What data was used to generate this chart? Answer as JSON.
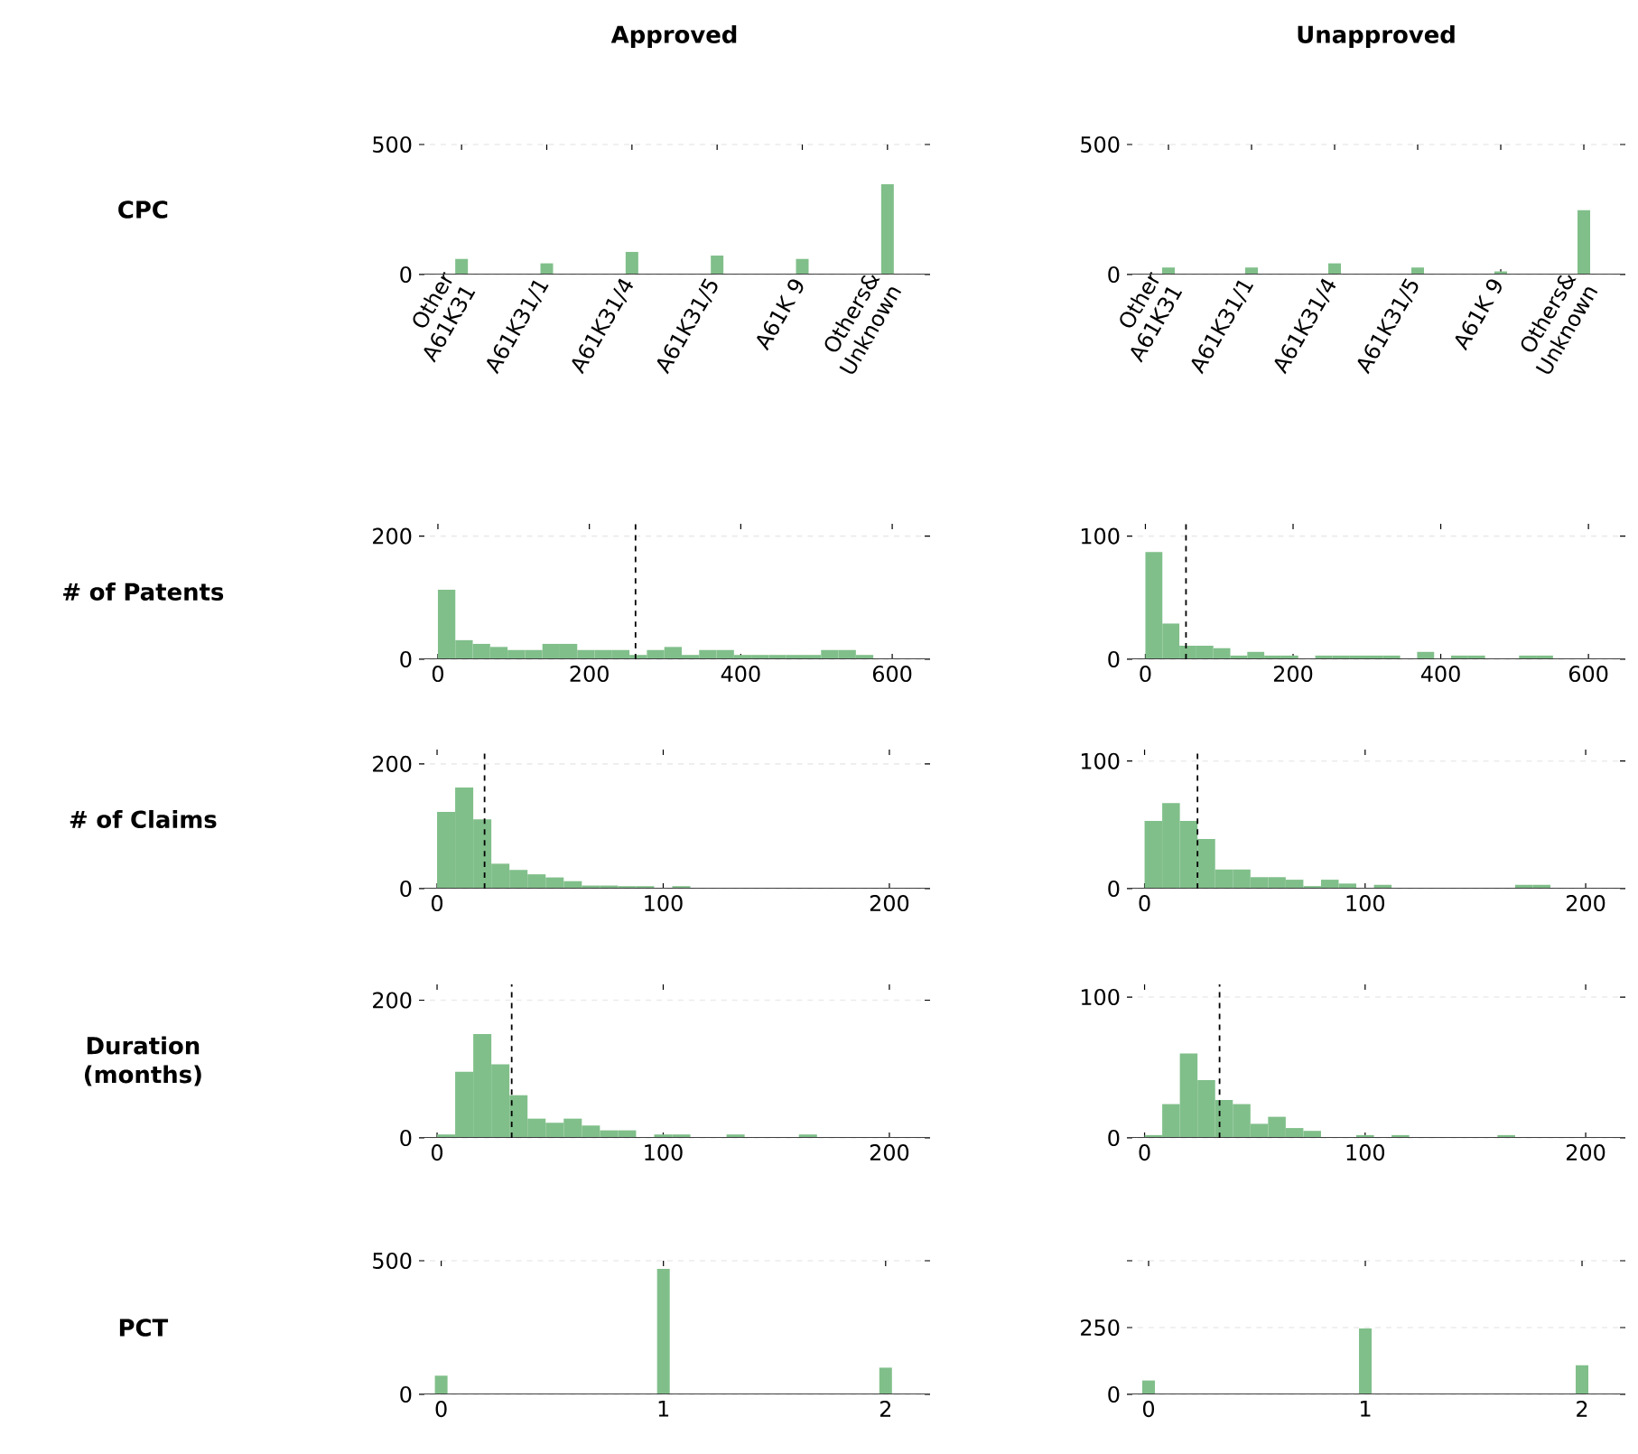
{
  "chart_data": [
    {
      "type": "bar",
      "title": "Approved",
      "ylabel": "CPC",
      "categories": [
        "Other A61K31",
        "A61K31/1",
        "A61K31/4",
        "A61K31/5",
        "A61K 9",
        "Others& Unknown"
      ],
      "values": [
        60,
        43,
        87,
        73,
        60,
        347
      ],
      "color": "#80bf8a",
      "ylim": [
        0,
        500
      ],
      "yticks": [
        0,
        500
      ],
      "grid": "y"
    },
    {
      "type": "bar",
      "title": "Unapproved",
      "categories": [
        "Other A61K31",
        "A61K31/1",
        "A61K31/4",
        "A61K31/5",
        "A61K 9",
        "Others& Unknown"
      ],
      "values": [
        27,
        27,
        43,
        27,
        12,
        247
      ],
      "color": "#80bf8a",
      "ylim": [
        0,
        500
      ],
      "yticks": [
        0,
        500
      ],
      "grid": "y"
    },
    {
      "type": "histogram",
      "ylabel": "# of Patents",
      "bins": [
        0,
        23,
        46,
        69,
        92,
        115,
        138,
        161,
        184,
        207,
        230,
        253,
        276,
        299,
        322,
        345,
        368,
        391,
        414,
        437,
        460,
        483,
        506,
        529,
        552,
        575,
        598
      ],
      "values": [
        113,
        31,
        25,
        20,
        15,
        15,
        25,
        25,
        15,
        15,
        15,
        7,
        15,
        20,
        7,
        15,
        15,
        7,
        7,
        7,
        7,
        7,
        15,
        15,
        7,
        0
      ],
      "color": "#80bf8a",
      "xlim": [
        -25,
        650
      ],
      "xticks": [
        0,
        200,
        400,
        600
      ],
      "ylim": [
        0,
        220
      ],
      "yticks": [
        0,
        200
      ],
      "grid": "y",
      "ref_lines": [
        {
          "axis": "x",
          "value": 261,
          "color": "#000000",
          "line_style": "dashed"
        }
      ]
    },
    {
      "type": "histogram",
      "bins": [
        0,
        23,
        46,
        69,
        92,
        115,
        138,
        161,
        184,
        207,
        230,
        253,
        276,
        299,
        322,
        345,
        368,
        391,
        414,
        437,
        460,
        483,
        506,
        529,
        552,
        575,
        598
      ],
      "values": [
        87,
        29,
        11,
        11,
        9,
        3,
        6,
        3,
        3,
        0,
        3,
        3,
        3,
        3,
        3,
        0,
        6,
        0,
        3,
        3,
        0,
        0,
        3,
        3,
        0,
        0
      ],
      "color": "#80bf8a",
      "xlim": [
        -25,
        650
      ],
      "xticks": [
        0,
        200,
        400,
        600
      ],
      "ylim": [
        0,
        110
      ],
      "yticks": [
        0,
        100
      ],
      "grid": "y",
      "ref_lines": [
        {
          "axis": "x",
          "value": 55,
          "color": "#000000",
          "line_style": "dashed"
        }
      ]
    },
    {
      "type": "histogram",
      "ylabel": "# of Claims",
      "bins": [
        0,
        8,
        16,
        24,
        32,
        40,
        48,
        56,
        64,
        72,
        80,
        88,
        96,
        104,
        112,
        120,
        128,
        136,
        144,
        152,
        160,
        168,
        176,
        184,
        192,
        200
      ],
      "values": [
        123,
        162,
        111,
        40,
        30,
        23,
        18,
        12,
        5,
        5,
        4,
        4,
        0,
        4,
        0,
        0,
        0,
        0,
        0,
        0,
        0,
        0,
        0,
        0,
        0
      ],
      "color": "#80bf8a",
      "xlim": [
        -8,
        218
      ],
      "xticks": [
        0,
        100,
        200
      ],
      "ylim": [
        0,
        223
      ],
      "yticks": [
        0,
        200
      ],
      "grid": "y",
      "ref_lines": [
        {
          "axis": "x",
          "value": 21,
          "color": "#000000",
          "line_style": "dashed"
        }
      ]
    },
    {
      "type": "histogram",
      "bins": [
        0,
        8,
        16,
        24,
        32,
        40,
        48,
        56,
        64,
        72,
        80,
        88,
        96,
        104,
        112,
        120,
        128,
        136,
        144,
        152,
        160,
        168,
        176,
        184,
        192,
        200
      ],
      "values": [
        53,
        67,
        53,
        39,
        15,
        15,
        9,
        9,
        7,
        2,
        7,
        4,
        0,
        3,
        0,
        0,
        0,
        0,
        0,
        0,
        0,
        3,
        3,
        0,
        0
      ],
      "color": "#80bf8a",
      "xlim": [
        -8,
        218
      ],
      "xticks": [
        0,
        100,
        200
      ],
      "ylim": [
        0,
        109
      ],
      "yticks": [
        0,
        100
      ],
      "grid": "y",
      "ref_lines": [
        {
          "axis": "x",
          "value": 24,
          "color": "#000000",
          "line_style": "dashed"
        }
      ]
    },
    {
      "type": "histogram",
      "ylabel": "Duration (months)",
      "bins": [
        0,
        8,
        16,
        24,
        32,
        40,
        48,
        56,
        64,
        72,
        80,
        88,
        96,
        104,
        112,
        120,
        128,
        136,
        144,
        152,
        160,
        168,
        176,
        184,
        192,
        200
      ],
      "values": [
        5,
        96,
        151,
        107,
        62,
        28,
        22,
        28,
        18,
        11,
        11,
        0,
        5,
        5,
        0,
        0,
        5,
        0,
        0,
        0,
        5,
        0,
        0,
        0,
        0
      ],
      "color": "#80bf8a",
      "xlim": [
        -8,
        218
      ],
      "xticks": [
        0,
        100,
        200
      ],
      "ylim": [
        0,
        223
      ],
      "yticks": [
        0,
        200
      ],
      "grid": "y",
      "ref_lines": [
        {
          "axis": "x",
          "value": 33,
          "color": "#000000",
          "line_style": "dashed"
        }
      ]
    },
    {
      "type": "histogram",
      "bins": [
        0,
        8,
        16,
        24,
        32,
        40,
        48,
        56,
        64,
        72,
        80,
        88,
        96,
        104,
        112,
        120,
        128,
        136,
        144,
        152,
        160,
        168,
        176,
        184,
        192,
        200
      ],
      "values": [
        2,
        24,
        60,
        41,
        27,
        24,
        10,
        15,
        7,
        5,
        0,
        0,
        2,
        0,
        2,
        0,
        0,
        0,
        0,
        0,
        2,
        0,
        0,
        0,
        0
      ],
      "color": "#80bf8a",
      "xlim": [
        -8,
        218
      ],
      "xticks": [
        0,
        100,
        200
      ],
      "ylim": [
        0,
        109
      ],
      "yticks": [
        0,
        100
      ],
      "grid": "y",
      "ref_lines": [
        {
          "axis": "x",
          "value": 34,
          "color": "#000000",
          "line_style": "dashed"
        }
      ]
    },
    {
      "type": "bar",
      "ylabel": "PCT",
      "x": [
        0,
        1,
        2
      ],
      "values": [
        70,
        470,
        100
      ],
      "color": "#80bf8a",
      "xlim": [
        -0.1,
        2.2
      ],
      "xticks": [
        0,
        1,
        2
      ],
      "ylim": [
        0,
        500
      ],
      "yticks": [
        0,
        500
      ],
      "grid": "y"
    },
    {
      "type": "bar",
      "x": [
        0,
        1,
        2
      ],
      "values": [
        52,
        247,
        109
      ],
      "color": "#80bf8a",
      "xlim": [
        -0.1,
        2.2
      ],
      "xticks": [
        0,
        1,
        2
      ],
      "ylim": [
        0,
        500
      ],
      "yticks": [
        0,
        250,
        {
          "value": 500,
          "label": null
        }
      ],
      "grid": "y"
    }
  ]
}
